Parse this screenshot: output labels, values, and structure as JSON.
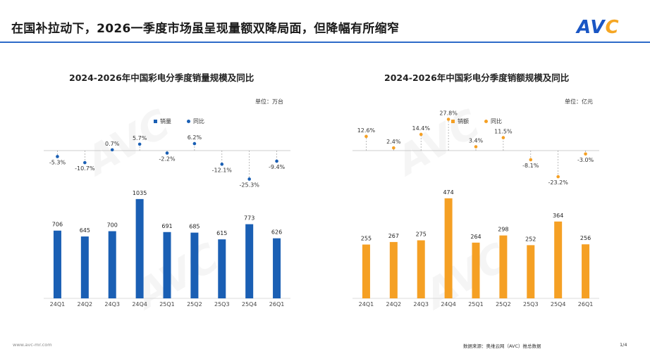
{
  "header": {
    "headline": "在国补拉动下，2026一季度市场虽呈现量额双降局面，但降幅有所缩窄",
    "logo_main": "AV",
    "logo_accent": "C"
  },
  "colors": {
    "volume_bar": "#1a5fb4",
    "amount_bar": "#f5a024",
    "yoy_volume_dot": "#1a5fb4",
    "yoy_amount_dot": "#f5a024"
  },
  "chart_data": [
    {
      "type": "bar",
      "title": "2024-2026年中国彩电分季度销量规模及同比",
      "unit": "单位：万台",
      "legend": [
        "销量",
        "同比"
      ],
      "categories": [
        "24Q1",
        "24Q2",
        "24Q3",
        "24Q4",
        "25Q1",
        "25Q2",
        "25Q3",
        "25Q4",
        "26Q1"
      ],
      "series": [
        {
          "name": "销量",
          "values": [
            706,
            645,
            700,
            1035,
            691,
            685,
            615,
            773,
            626
          ]
        },
        {
          "name": "同比",
          "values": [
            -5.3,
            -10.7,
            0.7,
            5.7,
            -2.2,
            6.2,
            -12.1,
            -25.3,
            -9.4
          ],
          "labels": [
            "-5.3%",
            "-10.7%",
            "0.7%",
            "5.7%",
            "-2.2%",
            "6.2%",
            "-12.1%",
            "-25.3%",
            "-9.4%"
          ]
        }
      ],
      "ylim": [
        0,
        1100
      ]
    },
    {
      "type": "bar",
      "title": "2024-2026年中国彩电分季度销额规模及同比",
      "unit": "单位：亿元",
      "legend": [
        "销额",
        "同比"
      ],
      "categories": [
        "24Q1",
        "24Q2",
        "24Q3",
        "24Q4",
        "25Q1",
        "25Q2",
        "25Q3",
        "25Q4",
        "26Q1"
      ],
      "series": [
        {
          "name": "销额",
          "values": [
            255,
            267,
            275,
            474,
            264,
            298,
            252,
            364,
            256
          ]
        },
        {
          "name": "同比",
          "values": [
            12.6,
            2.4,
            14.4,
            27.8,
            3.4,
            11.5,
            -8.1,
            -23.2,
            -3.0
          ],
          "labels": [
            "12.6%",
            "2.4%",
            "14.4%",
            "27.8%",
            "3.4%",
            "11.5%",
            "-8.1%",
            "-23.2%",
            "-3.0%"
          ]
        }
      ],
      "ylim": [
        0,
        500
      ]
    }
  ],
  "footer": {
    "site": "www.avc-mr.com",
    "source": "数据来源：奥维云网（AVC）推总数据",
    "page": "1/4"
  }
}
